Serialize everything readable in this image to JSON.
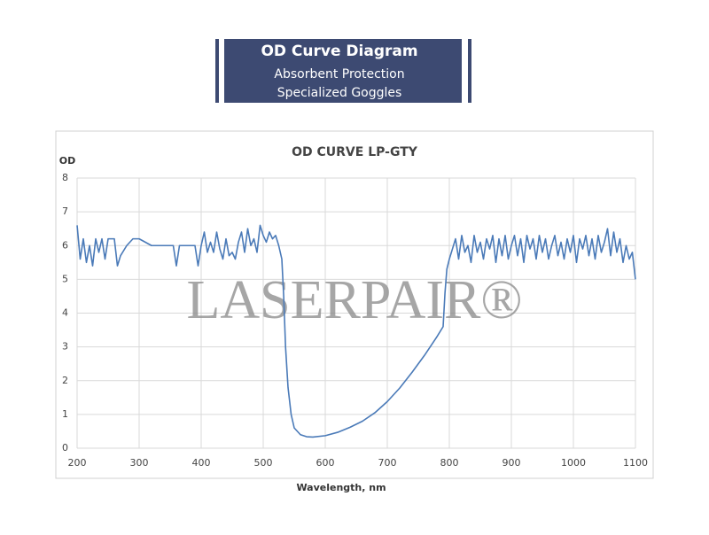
{
  "header": {
    "title": "OD Curve Diagram",
    "subtitle_lines": [
      "Absorbent Protection",
      "Specialized Goggles"
    ]
  },
  "chart_data": {
    "type": "line",
    "title": "OD CURVE LP-GTY",
    "y_label": "OD",
    "x_label": "Wavelength, nm",
    "watermark": "LASERPAIR®",
    "color": "#4a7ab8",
    "grid": true,
    "xlim": [
      200,
      1100
    ],
    "ylim": [
      0,
      8
    ],
    "xticks": [
      200,
      300,
      400,
      500,
      600,
      700,
      800,
      900,
      1000,
      1100
    ],
    "yticks": [
      0,
      1,
      2,
      3,
      4,
      5,
      6,
      7,
      8
    ],
    "x": [
      200,
      205,
      210,
      215,
      220,
      225,
      230,
      235,
      240,
      245,
      250,
      255,
      260,
      265,
      270,
      280,
      290,
      300,
      320,
      340,
      355,
      360,
      365,
      380,
      390,
      395,
      400,
      405,
      410,
      415,
      420,
      425,
      430,
      435,
      440,
      445,
      450,
      455,
      460,
      465,
      470,
      475,
      480,
      485,
      490,
      495,
      500,
      505,
      510,
      515,
      520,
      525,
      530,
      533,
      536,
      540,
      545,
      550,
      560,
      570,
      580,
      600,
      620,
      640,
      660,
      680,
      700,
      720,
      740,
      760,
      780,
      790,
      793,
      796,
      800,
      805,
      810,
      815,
      820,
      825,
      830,
      835,
      840,
      845,
      850,
      855,
      860,
      865,
      870,
      875,
      880,
      885,
      890,
      895,
      900,
      905,
      910,
      915,
      920,
      925,
      930,
      935,
      940,
      945,
      950,
      955,
      960,
      965,
      970,
      975,
      980,
      985,
      990,
      995,
      1000,
      1005,
      1010,
      1015,
      1020,
      1025,
      1030,
      1035,
      1040,
      1045,
      1050,
      1055,
      1060,
      1065,
      1070,
      1075,
      1080,
      1085,
      1090,
      1095,
      1100
    ],
    "values": [
      6.6,
      5.6,
      6.2,
      5.5,
      6.0,
      5.4,
      6.2,
      5.8,
      6.2,
      5.6,
      6.2,
      6.2,
      6.2,
      5.4,
      5.7,
      6.0,
      6.2,
      6.2,
      6.0,
      6.0,
      6.0,
      5.4,
      6.0,
      6.0,
      6.0,
      5.4,
      6.0,
      6.4,
      5.8,
      6.1,
      5.8,
      6.4,
      5.9,
      5.6,
      6.2,
      5.7,
      5.8,
      5.6,
      6.1,
      6.4,
      5.8,
      6.5,
      6.0,
      6.2,
      5.8,
      6.6,
      6.3,
      6.1,
      6.4,
      6.2,
      6.3,
      6.0,
      5.6,
      4.5,
      3.0,
      1.8,
      1.0,
      0.6,
      0.4,
      0.34,
      0.33,
      0.37,
      0.47,
      0.62,
      0.8,
      1.05,
      1.38,
      1.78,
      2.25,
      2.75,
      3.3,
      3.6,
      4.6,
      5.3,
      5.6,
      5.9,
      6.2,
      5.6,
      6.3,
      5.8,
      6.0,
      5.5,
      6.3,
      5.8,
      6.1,
      5.6,
      6.2,
      5.9,
      6.3,
      5.5,
      6.2,
      5.7,
      6.3,
      5.6,
      6.0,
      6.3,
      5.7,
      6.2,
      5.5,
      6.3,
      5.9,
      6.2,
      5.6,
      6.3,
      5.8,
      6.2,
      5.6,
      6.0,
      6.3,
      5.7,
      6.1,
      5.6,
      6.2,
      5.8,
      6.3,
      5.5,
      6.2,
      5.9,
      6.3,
      5.7,
      6.2,
      5.6,
      6.3,
      5.8,
      6.1,
      6.5,
      5.7,
      6.4,
      5.8,
      6.2,
      5.5,
      6.0,
      5.6,
      5.8,
      5.0
    ]
  }
}
